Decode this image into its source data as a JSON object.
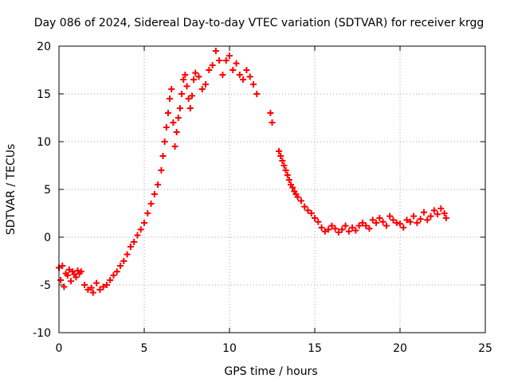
{
  "chart_data": {
    "type": "scatter",
    "title": "Day 086 of 2024, Sidereal Day-to-day VTEC variation (SDTVAR) for receiver krgg",
    "xlabel": "GPS time / hours",
    "ylabel": "SDTVAR / TECUs",
    "xlim": [
      0,
      25
    ],
    "ylim": [
      -10,
      20
    ],
    "grid": true,
    "marker": "+",
    "colors": {
      "series": "#ff0000",
      "grid": "#a0a0a0",
      "axis": "#000000"
    },
    "x_ticks": [
      {
        "value": 0,
        "label": "0"
      },
      {
        "value": 5,
        "label": "5"
      },
      {
        "value": 10,
        "label": "10"
      },
      {
        "value": 15,
        "label": "15"
      },
      {
        "value": 20,
        "label": "20"
      },
      {
        "value": 25,
        "label": "25"
      }
    ],
    "y_ticks": [
      {
        "value": -10,
        "label": "-10"
      },
      {
        "value": -5,
        "label": "-5"
      },
      {
        "value": 0,
        "label": "0"
      },
      {
        "value": 5,
        "label": "5"
      },
      {
        "value": 10,
        "label": "10"
      },
      {
        "value": 15,
        "label": "15"
      },
      {
        "value": 20,
        "label": "20"
      }
    ],
    "series": [
      {
        "name": "SDTVAR",
        "x": [
          0.0,
          0.1,
          0.2,
          0.3,
          0.4,
          0.5,
          0.6,
          0.7,
          0.8,
          0.9,
          1.0,
          1.1,
          1.2,
          1.3,
          1.5,
          1.7,
          1.9,
          2.0,
          2.2,
          2.4,
          2.6,
          2.8,
          3.0,
          3.2,
          3.4,
          3.6,
          3.8,
          4.0,
          4.2,
          4.4,
          4.6,
          4.8,
          5.0,
          5.2,
          5.4,
          5.6,
          5.8,
          6.0,
          6.1,
          6.2,
          6.3,
          6.4,
          6.5,
          6.6,
          6.7,
          6.8,
          6.9,
          7.0,
          7.1,
          7.2,
          7.3,
          7.4,
          7.5,
          7.6,
          7.7,
          7.8,
          7.9,
          8.0,
          8.2,
          8.4,
          8.6,
          8.8,
          9.0,
          9.2,
          9.4,
          9.6,
          9.8,
          10.0,
          10.2,
          10.4,
          10.6,
          10.8,
          11.0,
          11.2,
          11.4,
          11.6,
          12.4,
          12.5,
          12.9,
          13.0,
          13.1,
          13.2,
          13.3,
          13.4,
          13.5,
          13.6,
          13.7,
          13.8,
          13.9,
          14.0,
          14.2,
          14.4,
          14.6,
          14.8,
          15.0,
          15.2,
          15.4,
          15.6,
          15.8,
          16.0,
          16.2,
          16.4,
          16.6,
          16.8,
          17.0,
          17.2,
          17.4,
          17.6,
          17.8,
          18.0,
          18.2,
          18.4,
          18.6,
          18.8,
          19.0,
          19.2,
          19.4,
          19.6,
          19.8,
          20.0,
          20.2,
          20.4,
          20.6,
          20.8,
          21.0,
          21.2,
          21.4,
          21.6,
          21.8,
          22.0,
          22.2,
          22.4,
          22.6,
          22.7
        ],
        "y": [
          -3.2,
          -4.5,
          -3.0,
          -5.2,
          -3.8,
          -4.0,
          -3.4,
          -4.6,
          -3.6,
          -3.9,
          -4.2,
          -3.5,
          -3.8,
          -3.6,
          -5.0,
          -5.5,
          -5.3,
          -5.8,
          -4.8,
          -5.5,
          -5.2,
          -5.0,
          -4.5,
          -4.0,
          -3.6,
          -3.0,
          -2.5,
          -1.8,
          -1.0,
          -0.5,
          0.2,
          0.8,
          1.5,
          2.5,
          3.5,
          4.5,
          5.5,
          7.0,
          8.5,
          10.0,
          11.5,
          13.0,
          14.5,
          15.5,
          12.0,
          9.5,
          11.0,
          12.5,
          13.5,
          15.0,
          16.5,
          17.0,
          15.8,
          14.5,
          13.5,
          14.8,
          16.5,
          17.2,
          16.8,
          15.5,
          16.0,
          17.5,
          18.0,
          19.5,
          18.5,
          17.0,
          18.5,
          19.0,
          17.5,
          18.2,
          17.0,
          16.5,
          17.5,
          16.8,
          16.0,
          15.0,
          13.0,
          12.0,
          9.0,
          8.5,
          8.0,
          7.5,
          7.0,
          6.5,
          6.0,
          5.5,
          5.2,
          4.8,
          4.5,
          4.2,
          3.8,
          3.2,
          2.8,
          2.5,
          2.0,
          1.6,
          1.0,
          0.6,
          0.8,
          1.2,
          0.9,
          0.5,
          0.8,
          1.2,
          0.6,
          1.0,
          0.7,
          1.2,
          1.5,
          1.2,
          0.9,
          1.8,
          1.5,
          2.0,
          1.6,
          1.2,
          2.2,
          1.8,
          1.5,
          1.4,
          1.0,
          1.8,
          1.6,
          2.2,
          1.5,
          1.9,
          2.6,
          1.8,
          2.2,
          2.8,
          2.4,
          3.0,
          2.5,
          2.0
        ]
      }
    ]
  }
}
